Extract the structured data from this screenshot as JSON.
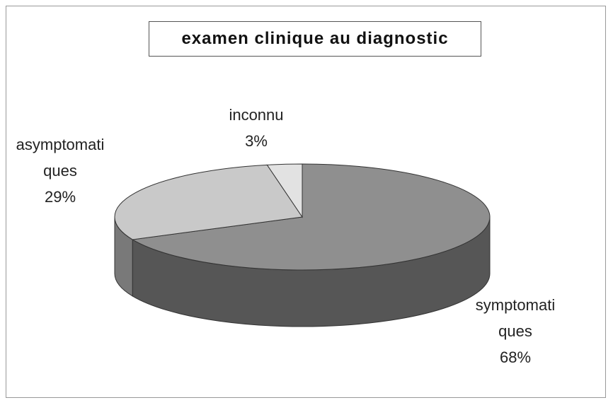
{
  "chart_data": {
    "type": "pie3d",
    "title": "examen clinique au diagnostic",
    "categories": [
      "symptomatiques",
      "asymptomatiques",
      "inconnu"
    ],
    "values": [
      68,
      29,
      3
    ],
    "value_labels": [
      "68%",
      "29%",
      "3%"
    ],
    "colors": [
      "#8f8f8f",
      "#c9c9c9",
      "#e2e2e2"
    ]
  }
}
